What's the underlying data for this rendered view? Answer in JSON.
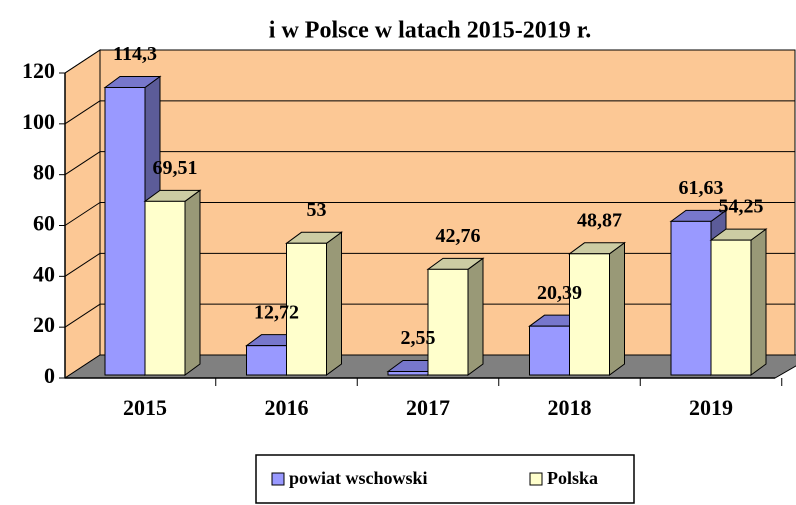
{
  "chart_data": {
    "type": "bar",
    "title": "i w Polsce w latach 2015-2019 r.",
    "categories": [
      "2015",
      "2016",
      "2017",
      "2018",
      "2019"
    ],
    "series": [
      {
        "name": "powiat wschowski",
        "color": "#9999ff",
        "values": [
          114.3,
          12.72,
          2.55,
          20.39,
          61.63
        ],
        "value_labels": [
          "114,3",
          "12,72",
          "2,55",
          "20,39",
          "61,63"
        ]
      },
      {
        "name": "Polska",
        "color": "#ffffcc",
        "values": [
          69.51,
          53,
          42.76,
          48.87,
          54.25
        ],
        "value_labels": [
          "69,51",
          "53",
          "42,76",
          "48,87",
          "54,25"
        ]
      }
    ],
    "ylim": [
      0,
      120
    ],
    "yticks": [
      0,
      20,
      40,
      60,
      80,
      100,
      120
    ],
    "grid": true,
    "legend": "bottom"
  }
}
